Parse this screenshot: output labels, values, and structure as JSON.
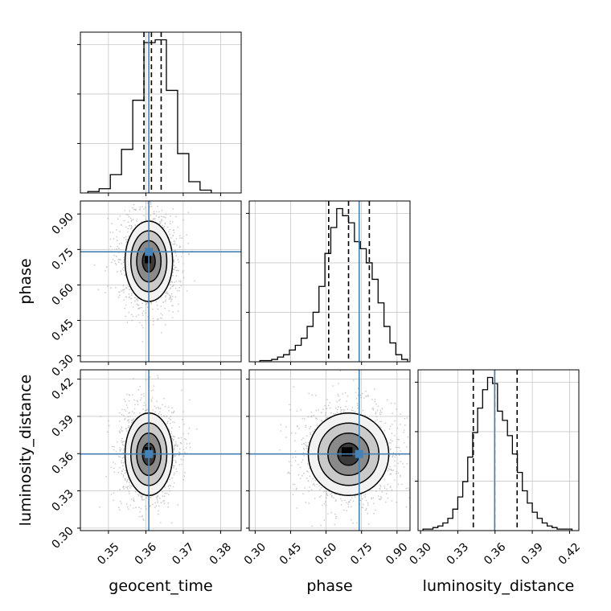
{
  "chart_data": {
    "type": "corner",
    "parameters": [
      "geocent_time",
      "phase",
      "luminosity_distance"
    ],
    "truths": {
      "geocent_time": 0.3608,
      "phase": 0.74,
      "luminosity_distance": 0.3597
    },
    "truth_color": "#4682b4",
    "histograms": [
      {
        "parameter": "geocent_time",
        "bin_edges": [
          0.3445,
          0.3475,
          0.3505,
          0.3535,
          0.3565,
          0.3595,
          0.3625,
          0.3655,
          0.3685,
          0.3715,
          0.3745,
          0.3775
        ],
        "heights": [
          2,
          6,
          26,
          62,
          132,
          214,
          218,
          146,
          56,
          16,
          4
        ],
        "quantiles": [
          0.3595,
          0.3615,
          0.3641
        ],
        "xlim": [
          0.3425,
          0.3855
        ],
        "xticks": [
          0.35,
          0.36,
          0.37,
          0.38
        ],
        "xtick_labels": [
          "0.35",
          "0.36",
          "0.37",
          "0.38"
        ]
      },
      {
        "parameter": "phase",
        "bin_edges": [
          0.32,
          0.345,
          0.37,
          0.395,
          0.42,
          0.445,
          0.47,
          0.495,
          0.52,
          0.545,
          0.57,
          0.595,
          0.62,
          0.645,
          0.67,
          0.695,
          0.72,
          0.745,
          0.77,
          0.795,
          0.82,
          0.845,
          0.87,
          0.895,
          0.92,
          0.945
        ],
        "heights": [
          1,
          1,
          2,
          4,
          6,
          10,
          14,
          20,
          30,
          42,
          64,
          92,
          114,
          130,
          124,
          118,
          102,
          96,
          84,
          70,
          50,
          30,
          16,
          6,
          2
        ],
        "quantiles": [
          0.611,
          0.695,
          0.783
        ],
        "xlim": [
          0.275,
          0.955
        ],
        "xticks": [
          0.3,
          0.45,
          0.6,
          0.75,
          0.9
        ],
        "xtick_labels": [
          "0.30",
          "0.45",
          "0.60",
          "0.75",
          "0.90"
        ]
      },
      {
        "parameter": "luminosity_distance",
        "bin_edges": [
          0.302,
          0.306,
          0.31,
          0.314,
          0.318,
          0.322,
          0.326,
          0.33,
          0.334,
          0.338,
          0.342,
          0.346,
          0.35,
          0.354,
          0.358,
          0.362,
          0.366,
          0.37,
          0.374,
          0.378,
          0.382,
          0.386,
          0.39,
          0.394,
          0.398,
          0.402,
          0.406,
          0.41,
          0.414,
          0.418,
          0.422
        ],
        "heights": [
          1,
          1,
          2,
          3,
          5,
          8,
          14,
          22,
          32,
          48,
          64,
          80,
          92,
          100,
          96,
          78,
          72,
          62,
          50,
          38,
          26,
          18,
          12,
          8,
          5,
          3,
          2,
          1,
          1,
          1
        ],
        "quantiles": [
          0.3425,
          0.3597,
          0.3778
        ],
        "xlim": [
          0.298,
          0.4275
        ],
        "xticks": [
          0.3,
          0.33,
          0.36,
          0.39,
          0.42
        ],
        "xtick_labels": [
          "0.30",
          "0.33",
          "0.36",
          "0.39",
          "0.42"
        ]
      }
    ],
    "two_d_posteriors": [
      {
        "x": "geocent_time",
        "y": "phase",
        "x_center": 0.3608,
        "y_center": 0.7,
        "x_sd": 0.0031,
        "y_sd": 0.083
      },
      {
        "x": "geocent_time",
        "y": "luminosity_distance",
        "x_center": 0.3608,
        "y_center": 0.3595,
        "x_sd": 0.0031,
        "y_sd": 0.0162
      },
      {
        "x": "phase",
        "y": "luminosity_distance",
        "x_center": 0.695,
        "y_center": 0.3595,
        "x_sd": 0.083,
        "y_sd": 0.0162
      }
    ],
    "ylims": {
      "phase": [
        0.275,
        0.955
      ],
      "luminosity_distance": [
        0.298,
        0.4275
      ]
    },
    "yticks": {
      "phase": {
        "values": [
          0.3,
          0.45,
          0.6,
          0.75,
          0.9
        ],
        "labels": [
          "0.30",
          "0.45",
          "0.60",
          "0.75",
          "0.90"
        ]
      },
      "luminosity_distance": {
        "values": [
          0.3,
          0.33,
          0.36,
          0.39,
          0.42
        ],
        "labels": [
          "0.30",
          "0.33",
          "0.36",
          "0.39",
          "0.42"
        ]
      }
    },
    "axis_labels": {
      "x": [
        "geocent_time",
        "phase",
        "luminosity_distance"
      ],
      "y": [
        "phase",
        "luminosity_distance"
      ]
    },
    "grid": true
  }
}
